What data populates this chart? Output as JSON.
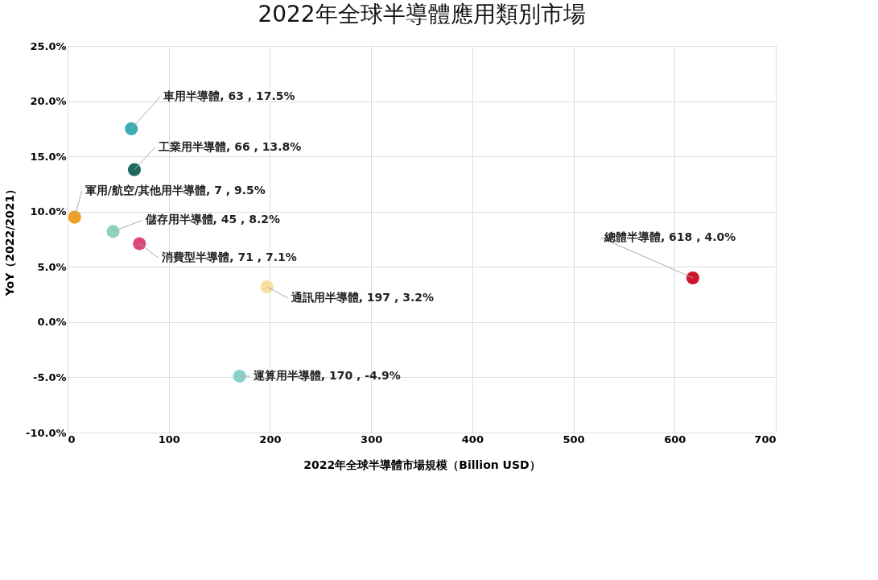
{
  "chart_data": {
    "type": "scatter",
    "title": "2022年全球半導體應用類別市場",
    "xlabel": "2022年全球半導體市場規模（Billion USD）",
    "ylabel": "YoY（2022/2021）",
    "x": [
      63,
      66,
      7,
      45,
      71,
      197,
      170,
      618
    ],
    "values": [
      17.5,
      13.8,
      9.5,
      8.2,
      7.1,
      3.2,
      -4.9,
      4.0
    ],
    "colors": [
      "#3aaeb0",
      "#1e6b5e",
      "#f0a020",
      "#8fd3b8",
      "#e0457a",
      "#f5e0a0",
      "#88d0cc",
      "#d0142c"
    ],
    "annotations": [
      {
        "text": "車用半導體, 63 , 17.5%",
        "x": 63,
        "y": 17.5
      },
      {
        "text": "工業用半導體, 66 , 13.8%",
        "x": 66,
        "y": 13.8
      },
      {
        "text": "軍用/航空/其他用半導體, 7 , 9.5%",
        "x": 7,
        "y": 9.5
      },
      {
        "text": "儲存用半導體, 45 , 8.2%",
        "x": 45,
        "y": 8.2
      },
      {
        "text": "消費型半導體, 71 , 7.1%",
        "x": 71,
        "y": 7.1
      },
      {
        "text": "通訊用半導體, 197 , 3.2%",
        "x": 197,
        "y": 3.2
      },
      {
        "text": "運算用半導體, 170 , -4.9%",
        "x": 170,
        "y": -4.9
      },
      {
        "text": "總體半導體, 618 , 4.0%",
        "x": 618,
        "y": 4.0
      }
    ],
    "xlim": [
      0,
      700
    ],
    "xticks": [
      0,
      100,
      200,
      300,
      400,
      500,
      600,
      700
    ],
    "ylim": [
      -10,
      25
    ],
    "yticks": [
      {
        "value": -10,
        "label": "-10.0%"
      },
      {
        "value": -5,
        "label": "-5.0%"
      },
      {
        "value": 0,
        "label": "0.0%"
      },
      {
        "value": 5,
        "label": "5.0%"
      },
      {
        "value": 10,
        "label": "10.0%"
      },
      {
        "value": 15,
        "label": "15.0%"
      },
      {
        "value": 20,
        "label": "20.0%"
      },
      {
        "value": 25,
        "label": "25.0%"
      }
    ],
    "grid": true,
    "marker": "circle",
    "legend": false
  }
}
